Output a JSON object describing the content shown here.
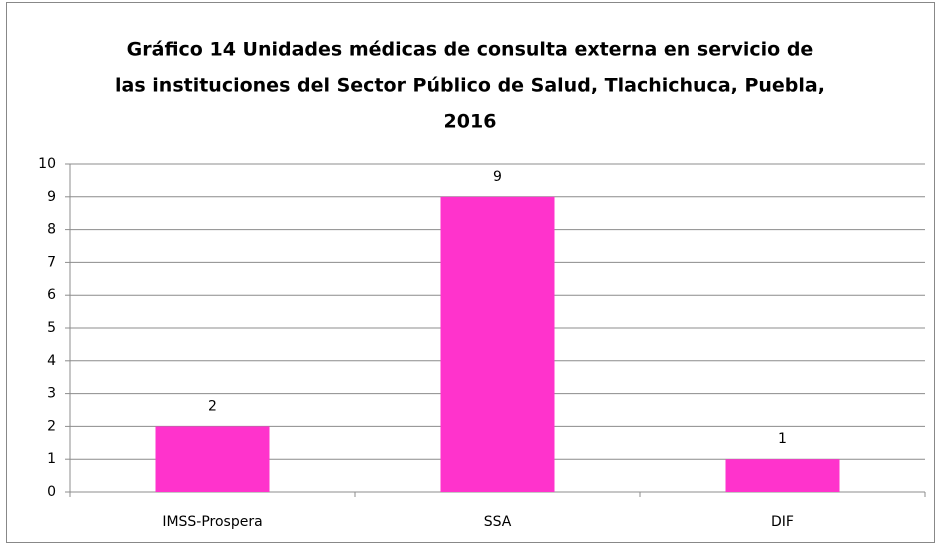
{
  "chart_data": {
    "type": "bar",
    "title": [
      "Gráfico 14 Unidades médicas de consulta externa en servicio de",
      "las instituciones del Sector Público de Salud, Tlachichuca, Puebla,",
      "2016"
    ],
    "categories": [
      "IMSS-Prospera",
      "SSA",
      "DIF"
    ],
    "values": [
      2,
      9,
      1
    ],
    "color": "#ff33cc",
    "ylim": [
      0,
      10
    ],
    "yticks": [
      0,
      1,
      2,
      3,
      4,
      5,
      6,
      7,
      8,
      9,
      10
    ],
    "grid": true
  }
}
